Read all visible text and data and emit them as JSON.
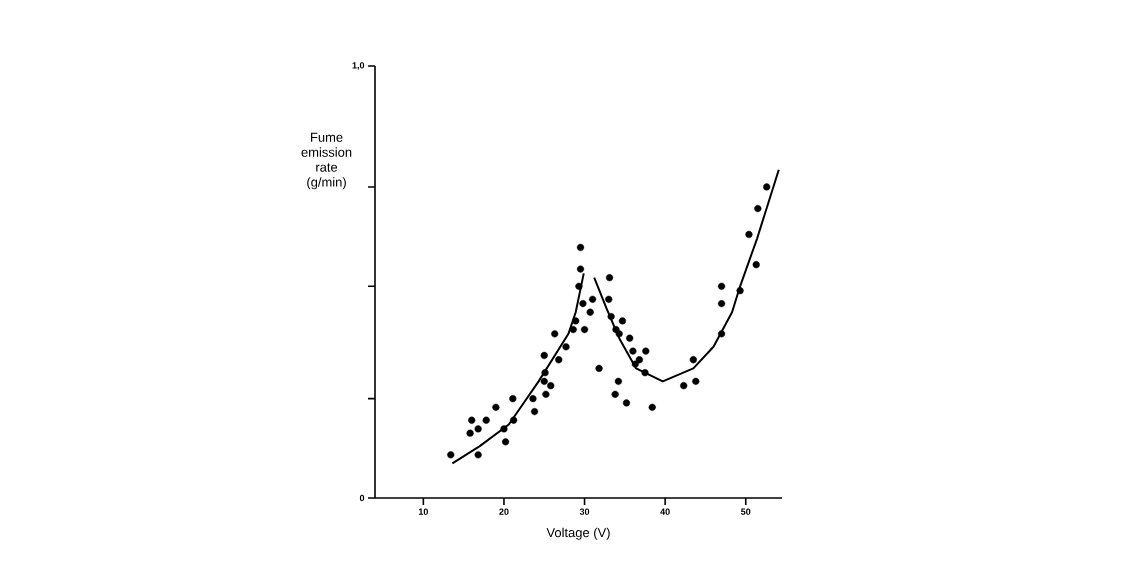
{
  "chart_data": {
    "type": "scatter",
    "xlabel": "Voltage (V)",
    "ylabel": "Fume emission rate (g/min)",
    "xlim": [
      4,
      54.5
    ],
    "xticks": [
      10,
      20,
      30,
      40,
      50
    ],
    "ylim": [
      0,
      1
    ],
    "yticks": [
      0,
      {
        "value": 0.23,
        "label": null
      },
      {
        "value": 0.49,
        "label": null
      },
      {
        "value": 0.72,
        "label": null
      },
      {
        "value": 1,
        "label": "1,0"
      }
    ],
    "grid": false,
    "series": [
      {
        "marker": "circle",
        "color": "#000000",
        "x": [
          13.4,
          16.0,
          15.8,
          16.8,
          16.8,
          17.8,
          19.0,
          20.0,
          20.2,
          21.2,
          21.1,
          23.6,
          23.8,
          25.0,
          25.1,
          25.0,
          25.2,
          25.8,
          26.3,
          26.8,
          27.7,
          28.6,
          28.9,
          29.3,
          29.8,
          30.0,
          30.7,
          31.0,
          31.8,
          33.0,
          33.3,
          33.8,
          34.2,
          34.7,
          33.9,
          34.3,
          35.2,
          35.6,
          36.0,
          36.3,
          36.8,
          37.5,
          37.6,
          38.4,
          42.3,
          43.5,
          43.8,
          47.0,
          47.0,
          47.0,
          49.3,
          29.5,
          29.5,
          33.1,
          51.3,
          50.4,
          51.5,
          52.6
        ],
        "values": [
          0.1,
          0.18,
          0.15,
          0.16,
          0.1,
          0.18,
          0.21,
          0.16,
          0.13,
          0.18,
          0.23,
          0.23,
          0.2,
          0.33,
          0.29,
          0.27,
          0.24,
          0.26,
          0.38,
          0.32,
          0.35,
          0.39,
          0.41,
          0.49,
          0.45,
          0.39,
          0.43,
          0.46,
          0.3,
          0.46,
          0.42,
          0.24,
          0.27,
          0.41,
          0.39,
          0.38,
          0.22,
          0.37,
          0.34,
          0.31,
          0.32,
          0.29,
          0.34,
          0.21,
          0.26,
          0.32,
          0.27,
          0.38,
          0.45,
          0.49,
          0.48,
          0.58,
          0.53,
          0.51,
          0.54,
          0.61,
          0.67,
          0.72
        ]
      },
      {
        "type": "line",
        "marker": "none",
        "line_style": "solid",
        "color": "#000000",
        "x": [
          13.6,
          17,
          20.6,
          24.3,
          28,
          28.9,
          29.9
        ],
        "values": [
          0.08,
          0.12,
          0.17,
          0.27,
          0.38,
          0.43,
          0.52
        ]
      },
      {
        "type": "line",
        "marker": "none",
        "line_style": "solid",
        "color": "#000000",
        "x": [
          31.2,
          32.7,
          34.3,
          36.4,
          39.7,
          43.5,
          46.0,
          48.3,
          49.3,
          51.4,
          54.1
        ],
        "values": [
          0.51,
          0.44,
          0.37,
          0.3,
          0.27,
          0.3,
          0.35,
          0.43,
          0.49,
          0.6,
          0.76
        ]
      }
    ]
  }
}
